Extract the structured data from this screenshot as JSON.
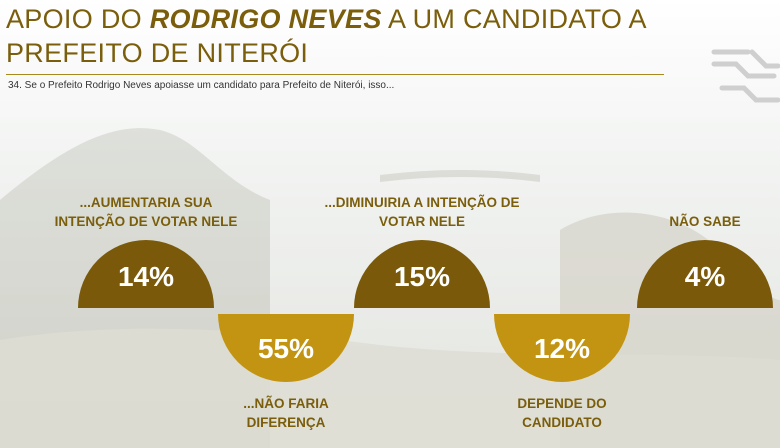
{
  "header": {
    "title_part1": "APOIO DO ",
    "title_emphasis": "RODRIGO NEVES",
    "title_part2": " A UM CANDIDATO A PREFEITO DE NITERÓI",
    "question": "34. Se o Prefeito Rodrigo Neves apoiasse um candidato para Prefeito de Niterói, isso..."
  },
  "colors": {
    "title": "#7a5e0c",
    "dark_semicircle": "#7a5a0a",
    "light_semicircle": "#c29412"
  },
  "chart_data": {
    "type": "bar",
    "categories": [
      "...AUMENTARIA SUA INTENÇÃO DE VOTAR NELE",
      "...NÃO FARIA DIFERENÇA",
      "...DIMINUIRIA A INTENÇÃO DE VOTAR NELE",
      "DEPENDE DO CANDIDATO",
      "NÃO SABE"
    ],
    "label_lines": [
      [
        "...AUMENTARIA SUA",
        "INTENÇÃO DE VOTAR NELE"
      ],
      [
        "...NÃO FARIA",
        "DIFERENÇA"
      ],
      [
        "...DIMINUIRIA A INTENÇÃO DE",
        "VOTAR NELE"
      ],
      [
        "DEPENDE DO",
        "CANDIDATO"
      ],
      [
        "NÃO SABE"
      ]
    ],
    "values": [
      14,
      55,
      15,
      12,
      4
    ],
    "value_labels": [
      "14%",
      "55%",
      "15%",
      "12%",
      "4%"
    ],
    "title": "",
    "xlabel": "",
    "ylabel": ""
  }
}
